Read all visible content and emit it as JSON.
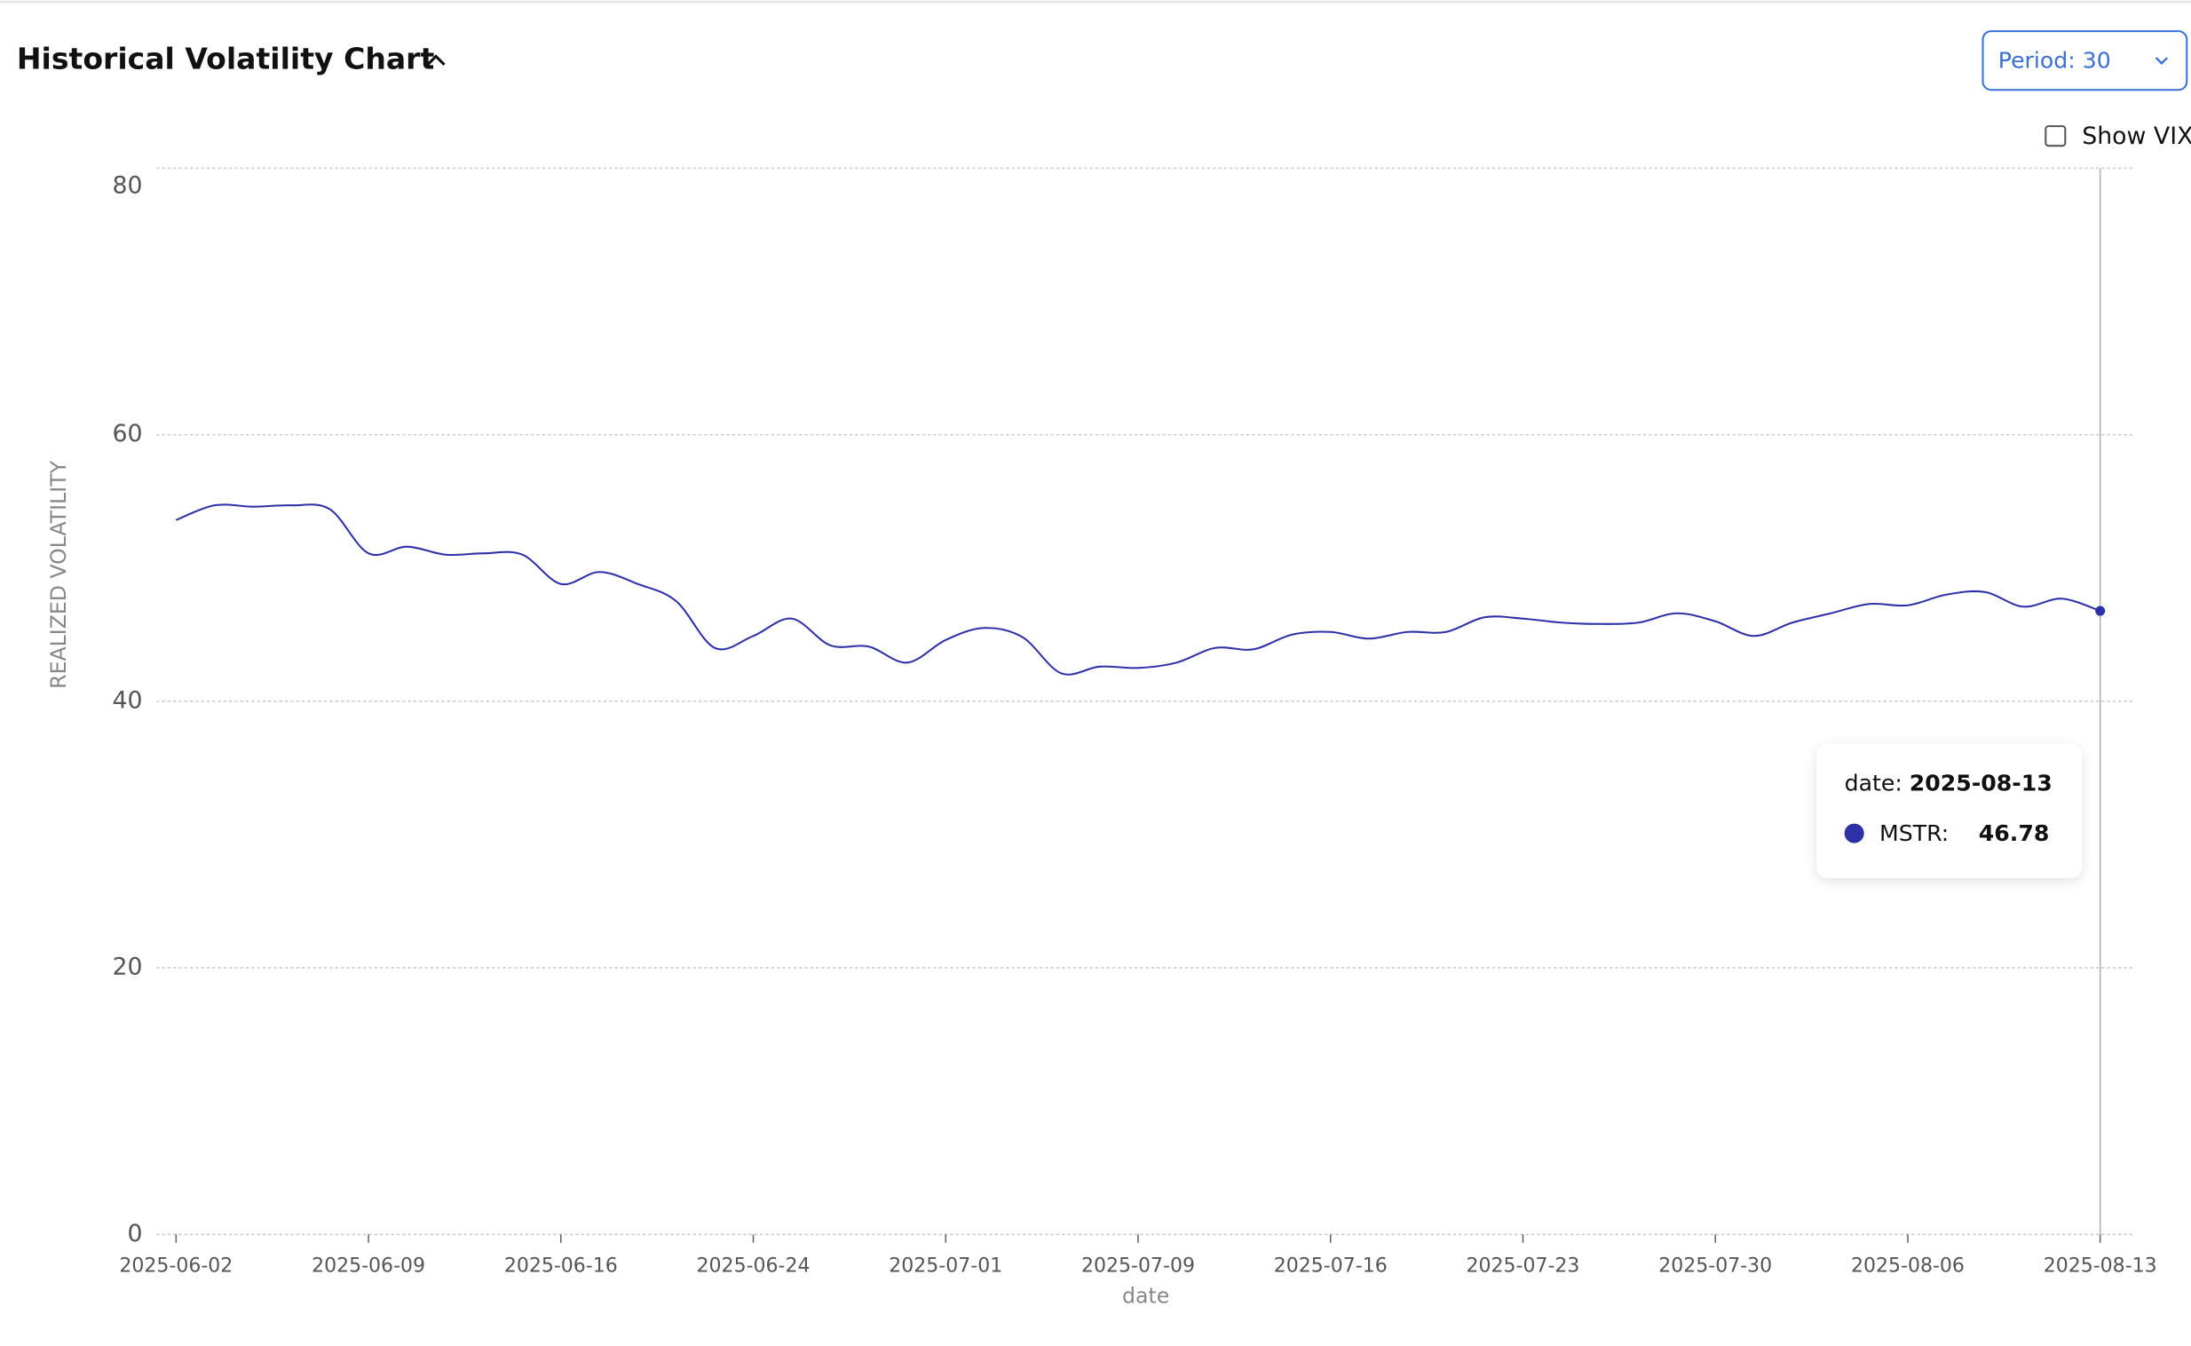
{
  "chart_data": {
    "type": "line",
    "title": "Historical Volatility Chart",
    "y_label": "REALIZED VOLATILITY",
    "x_label": "date",
    "categories": [
      "2025-06-02",
      null,
      null,
      null,
      null,
      "2025-06-09",
      null,
      null,
      null,
      null,
      "2025-06-16",
      null,
      null,
      null,
      null,
      "2025-06-24",
      null,
      null,
      null,
      null,
      "2025-07-01",
      null,
      null,
      null,
      null,
      "2025-07-09",
      null,
      null,
      null,
      null,
      "2025-07-16",
      null,
      null,
      null,
      null,
      "2025-07-23",
      null,
      null,
      null,
      null,
      "2025-07-30",
      null,
      null,
      null,
      null,
      "2025-08-06",
      null,
      null,
      null,
      null,
      "2025-08-13"
    ],
    "series": [
      {
        "name": "MSTR",
        "color": "#2e31a6",
        "values": [
          53.6,
          54.7,
          54.6,
          54.7,
          54.4,
          51.1,
          51.6,
          51.0,
          51.1,
          51.0,
          48.8,
          49.7,
          48.8,
          47.5,
          44.0,
          44.9,
          46.2,
          44.2,
          44.1,
          42.9,
          44.6,
          45.5,
          44.8,
          42.1,
          42.6,
          42.5,
          42.9,
          44.0,
          43.9,
          45.0,
          45.2,
          44.7,
          45.2,
          45.2,
          46.3,
          46.2,
          45.9,
          45.8,
          45.9,
          46.6,
          46.0,
          44.9,
          45.9,
          46.6,
          47.3,
          47.2,
          48.0,
          48.2,
          47.1,
          47.7,
          46.78
        ]
      }
    ],
    "ylim": [
      0,
      80
    ],
    "yticks": [
      0,
      20,
      40,
      60,
      80
    ],
    "grid": true,
    "tooltip": {
      "date_label": "date:",
      "series_label": "MSTR:"
    }
  },
  "controls": {
    "period": "Period: 30",
    "show_vix": "Show VIX"
  }
}
